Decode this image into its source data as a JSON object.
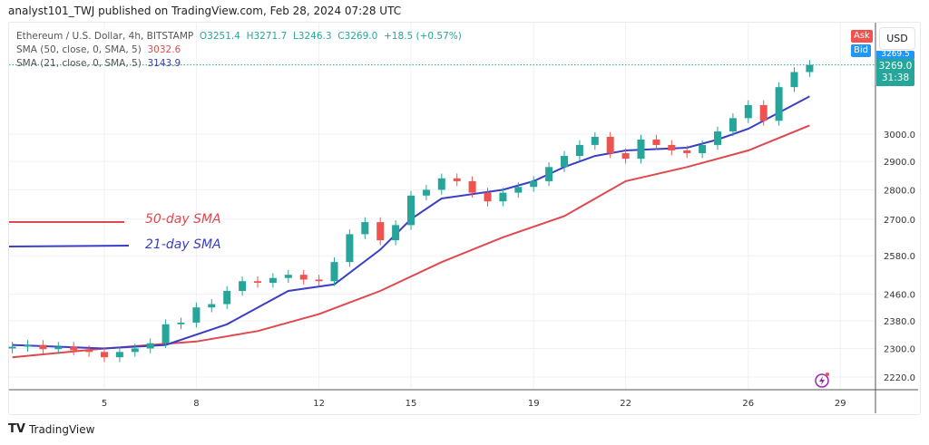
{
  "header": {
    "published": "analyst101_TWJ published on TradingView.com, Feb 28, 2024 07:28 UTC"
  },
  "legend": {
    "symbol": "Ethereum / U.S. Dollar, 4h, BITSTAMP",
    "open": "O3251.4",
    "high": "H3271.7",
    "low": "L3246.3",
    "close": "C3269.0",
    "change": "+18.5 (+0.57%)",
    "sma50_label": "SMA (50, close, 0, SMA, 5)",
    "sma50_value": "3032.6",
    "sma21_label": "SMA (21, close, 0, SMA, 5)",
    "sma21_value": "3143.9"
  },
  "annotations": {
    "sma50": "50-day SMA",
    "sma21": "21-day SMA"
  },
  "price_axis": {
    "currency": "USD",
    "ask": "Ask",
    "bid": "Bid",
    "last_price": "3269.0",
    "countdown": "31:38",
    "bid_partial": "3269.5"
  },
  "footer": {
    "brand": "TradingView"
  },
  "colors": {
    "up": "#26a69a",
    "down": "#ef5350",
    "sma50": "#e0484f",
    "sma21": "#3a3fc4",
    "grid": "#eef1f4"
  },
  "chart_data": {
    "type": "candlestick",
    "title": "Ethereum / U.S. Dollar, 4h, BITSTAMP",
    "y_scale": "log",
    "ylim": [
      2180,
      3330
    ],
    "y_ticks": [
      2220,
      2300,
      2380,
      2460,
      2580,
      2700,
      2800,
      2900,
      3000
    ],
    "y_tick_labels": [
      "2220.0",
      "2300.0",
      "2380.0",
      "2460.0",
      "2580.0",
      "2700.0",
      "2800.0",
      "2900.0",
      "3000.0"
    ],
    "x_range_day_of_feb_2024": [
      1.9,
      30.1
    ],
    "x_ticks": [
      5,
      8,
      12,
      15,
      19,
      22,
      26,
      29
    ],
    "x_tick_labels": [
      "5",
      "8",
      "12",
      "15",
      "19",
      "22",
      "26",
      "29"
    ],
    "grid": true,
    "note_approx": "values estimated from chart",
    "candles": {
      "day": [
        2.0,
        2.5,
        3.0,
        3.5,
        4.0,
        4.5,
        5.0,
        5.5,
        6.0,
        6.5,
        7.0,
        7.5,
        8.0,
        8.5,
        9.0,
        9.5,
        10.0,
        10.5,
        11.0,
        11.5,
        12.0,
        12.5,
        13.0,
        13.5,
        14.0,
        14.5,
        15.0,
        15.5,
        16.0,
        16.5,
        17.0,
        17.5,
        18.0,
        18.5,
        19.0,
        19.5,
        20.0,
        20.5,
        21.0,
        21.5,
        22.0,
        22.5,
        23.0,
        23.5,
        24.0,
        24.5,
        25.0,
        25.5,
        26.0,
        26.5,
        27.0,
        27.5,
        28.0
      ],
      "close": [
        2305,
        2310,
        2298,
        2305,
        2295,
        2290,
        2275,
        2290,
        2300,
        2315,
        2370,
        2375,
        2420,
        2430,
        2470,
        2500,
        2495,
        2510,
        2520,
        2505,
        2500,
        2560,
        2650,
        2690,
        2630,
        2680,
        2780,
        2800,
        2840,
        2830,
        2790,
        2760,
        2790,
        2810,
        2830,
        2880,
        2920,
        2960,
        2990,
        2930,
        2910,
        2980,
        2960,
        2940,
        2930,
        2960,
        3010,
        3060,
        3110,
        3050,
        3180,
        3240,
        3269
      ]
    },
    "series": [
      {
        "name": "50-day SMA",
        "day": [
          2,
          5,
          8,
          10,
          12,
          14,
          16,
          18,
          20,
          22,
          24,
          26,
          28
        ],
        "values": [
          2275,
          2300,
          2320,
          2350,
          2400,
          2470,
          2560,
          2640,
          2710,
          2830,
          2880,
          2940,
          3032.6
        ]
      },
      {
        "name": "21-day SMA",
        "day": [
          2,
          5,
          7,
          9,
          11,
          12.5,
          14,
          15,
          16,
          18,
          19,
          20,
          21,
          22,
          24,
          25,
          26,
          28
        ],
        "values": [
          2310,
          2300,
          2310,
          2370,
          2470,
          2490,
          2600,
          2700,
          2770,
          2800,
          2830,
          2880,
          2920,
          2940,
          2950,
          2980,
          3020,
          3143.9
        ]
      }
    ]
  }
}
